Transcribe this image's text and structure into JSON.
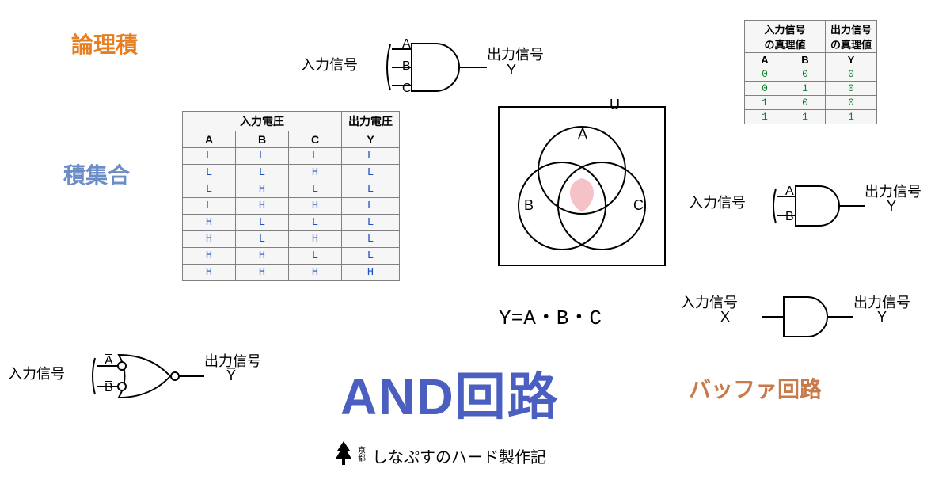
{
  "colors": {
    "orange": "#e67e22",
    "blue_label": "#6b8cc4",
    "brown": "#c97a4a",
    "title_blue": "#4a5fc0",
    "table_bg": "#f6f6f6",
    "table_border": "#808080",
    "table_value_blue": "#2050c0",
    "table_value_green": "#108030",
    "venn_fill": "#f5c2c7",
    "stroke": "#000000"
  },
  "labels": {
    "ronriseki": "論理積",
    "sekishugo": "積集合",
    "buffer": "バッファ回路",
    "big_title": "AND回路",
    "formula": "Y=A・B・C",
    "footer_prefix": "京都",
    "footer": "しなぷすのハード製作記",
    "input_signal": "入力信号",
    "output_signal": "出力信号",
    "U": "U",
    "A": "A",
    "B": "B",
    "C": "C",
    "X": "X",
    "Y": "Y",
    "Abar": "A̅",
    "Bbar": "B̅",
    "Ybar": "Y̅"
  },
  "voltage_table": {
    "type": "table",
    "header_groups": [
      {
        "label": "入力電圧",
        "span": 3
      },
      {
        "label": "出力電圧",
        "span": 1
      }
    ],
    "columns": [
      "A",
      "B",
      "C",
      "Y"
    ],
    "rows": [
      [
        "L",
        "L",
        "L",
        "L"
      ],
      [
        "L",
        "L",
        "H",
        "L"
      ],
      [
        "L",
        "H",
        "L",
        "L"
      ],
      [
        "L",
        "H",
        "H",
        "L"
      ],
      [
        "H",
        "L",
        "L",
        "L"
      ],
      [
        "H",
        "L",
        "H",
        "L"
      ],
      [
        "H",
        "H",
        "L",
        "L"
      ],
      [
        "H",
        "H",
        "H",
        "H"
      ]
    ],
    "cell_color": "#2050c0",
    "font_family": "Courier New"
  },
  "truth_table_2in": {
    "type": "table",
    "header_groups": [
      {
        "label_line1": "入力信号",
        "label_line2": "の真理値",
        "span": 2
      },
      {
        "label_line1": "出力信号",
        "label_line2": "の真理値",
        "span": 1
      }
    ],
    "columns": [
      "A",
      "B",
      "Y"
    ],
    "rows": [
      [
        "0",
        "0",
        "0"
      ],
      [
        "0",
        "1",
        "0"
      ],
      [
        "1",
        "0",
        "0"
      ],
      [
        "1",
        "1",
        "1"
      ]
    ],
    "cell_color": "#108030"
  },
  "venn": {
    "type": "venn3",
    "universe_label": "U",
    "set_labels": [
      "A",
      "B",
      "C"
    ],
    "intersection_fill": "#f5c2c7",
    "stroke": "#000000",
    "stroke_width": 2
  },
  "gates": {
    "and3": {
      "type": "AND",
      "inputs": [
        "A",
        "B",
        "C"
      ],
      "output": "Y",
      "input_label": "入力信号",
      "output_label": "出力信号"
    },
    "and2": {
      "type": "AND",
      "inputs": [
        "A",
        "B"
      ],
      "output": "Y",
      "input_label": "入力信号",
      "output_label": "出力信号"
    },
    "buffer": {
      "type": "AND_as_buffer",
      "inputs": [
        "X"
      ],
      "output": "Y",
      "input_label_top": "入力信号",
      "output_label_top": "出力信号"
    },
    "nor_inv": {
      "type": "OR_inverted_inputs",
      "inputs": [
        "A̅",
        "B̅"
      ],
      "output": "Y̅",
      "input_bubble": true,
      "output_bubble": true,
      "input_label": "入力信号",
      "output_label": "出力信号"
    }
  }
}
